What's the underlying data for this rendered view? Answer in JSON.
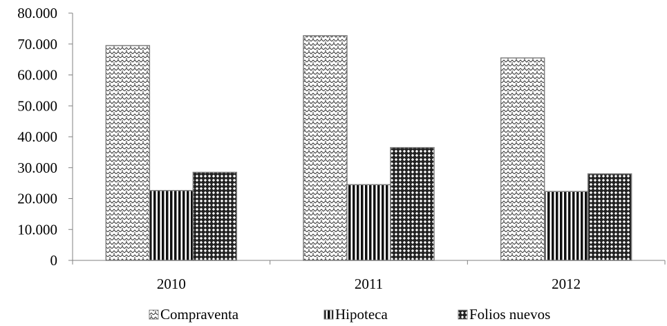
{
  "chart_data": {
    "type": "bar",
    "categories": [
      "2010",
      "2011",
      "2012"
    ],
    "series": [
      {
        "name": "Compraventa",
        "values": [
          69500,
          72700,
          65500
        ],
        "pattern": "zigzag-hatch"
      },
      {
        "name": "Hipoteca",
        "values": [
          22600,
          24500,
          22300
        ],
        "pattern": "vertical-stripes"
      },
      {
        "name": "Folios nuevos",
        "values": [
          28500,
          36500,
          28000
        ],
        "pattern": "diamond-lattice"
      }
    ],
    "ylim": [
      0,
      80000
    ],
    "y_ticks": [
      0,
      10000,
      20000,
      30000,
      40000,
      50000,
      60000,
      70000,
      80000
    ],
    "y_tick_labels": [
      "0",
      "10.000",
      "20.000",
      "30.000",
      "40.000",
      "50.000",
      "60.000",
      "70.000",
      "80.000"
    ],
    "title": "",
    "xlabel": "",
    "ylabel": "",
    "grid": false,
    "legend": "bottom",
    "colors": {
      "bar_stroke": "#7f7f7f",
      "axis": "#808080",
      "pattern_ink": "#222222",
      "background": "#ffffff"
    }
  }
}
